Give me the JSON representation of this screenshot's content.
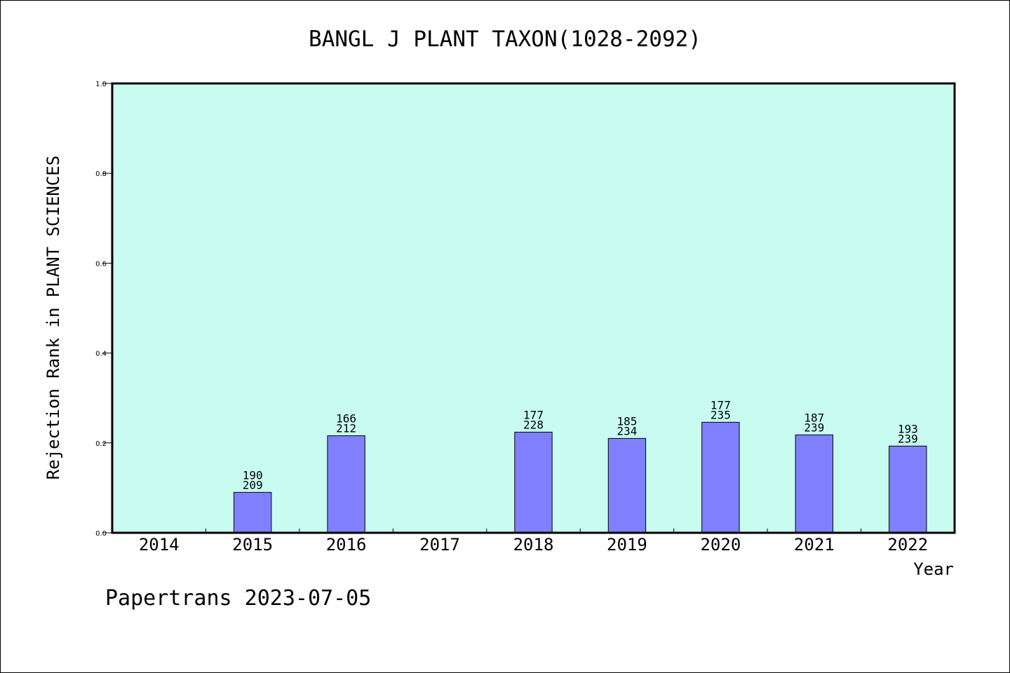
{
  "chart_data": {
    "type": "bar",
    "title": "BANGL J PLANT TAXON(1028-2092)",
    "xlabel": "Year",
    "ylabel": "Rejection Rank in PLANT SCIENCES",
    "ylim": [
      0,
      1
    ],
    "yticks": [
      "0.0",
      "0.2",
      "0.4",
      "0.6",
      "0.8",
      "1.0"
    ],
    "categories": [
      "2014",
      "2015",
      "2016",
      "2017",
      "2018",
      "2019",
      "2020",
      "2021",
      "2022"
    ],
    "values": [
      null,
      0.09,
      0.216,
      null,
      0.224,
      0.21,
      0.246,
      0.218,
      0.193
    ],
    "bar_labels_top": [
      "",
      "190",
      "166",
      "",
      "177",
      "185",
      "177",
      "187",
      "193"
    ],
    "bar_labels_bottom": [
      "",
      "209",
      "212",
      "",
      "228",
      "234",
      "235",
      "239",
      "239"
    ],
    "grid": false,
    "colors": {
      "plot_background": "#c8fcf0",
      "bar_fill": "#8080ff",
      "bar_stroke": "#000000"
    }
  },
  "footer": "Papertrans 2023-07-05"
}
